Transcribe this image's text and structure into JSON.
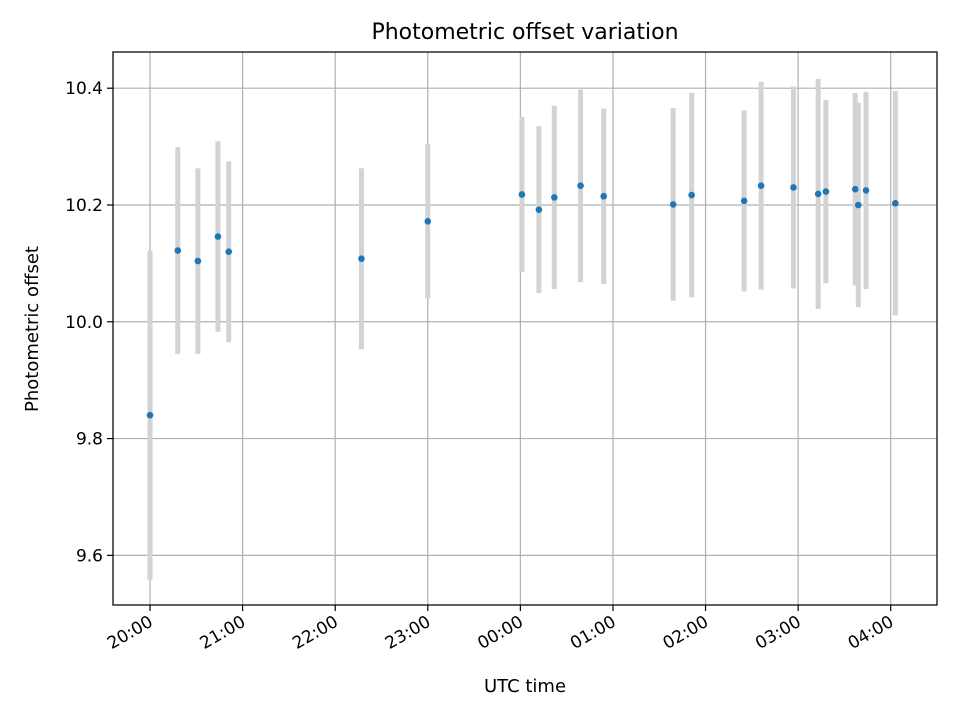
{
  "chart_data": {
    "type": "scatter",
    "title": "Photometric offset variation",
    "xlabel": "UTC time",
    "ylabel": "Photometric offset",
    "x_type": "time",
    "xlim": [
      "19:36",
      "04:30"
    ],
    "ylim": [
      9.515,
      10.462
    ],
    "x_ticks": [
      "20:00",
      "21:00",
      "22:00",
      "23:00",
      "00:00",
      "01:00",
      "02:00",
      "03:00",
      "04:00"
    ],
    "y_ticks": [
      9.6,
      9.8,
      10.0,
      10.2,
      10.4
    ],
    "y_tick_labels": [
      "9.6",
      "9.8",
      "10.0",
      "10.2",
      "10.4"
    ],
    "grid": true,
    "colors": {
      "marker": "#1f77b4",
      "errorbar": "#d3d3d3",
      "grid": "#b0b0b0",
      "axis": "#000000"
    },
    "series": [
      {
        "points": [
          {
            "x": "20:00",
            "y": 9.84,
            "yerr_low": 9.558,
            "yerr_high": 10.122
          },
          {
            "x": "20:18",
            "y": 10.122,
            "yerr_low": 9.945,
            "yerr_high": 10.299
          },
          {
            "x": "20:31",
            "y": 10.104,
            "yerr_low": 9.945,
            "yerr_high": 10.263
          },
          {
            "x": "20:44",
            "y": 10.146,
            "yerr_low": 9.983,
            "yerr_high": 10.309
          },
          {
            "x": "20:51",
            "y": 10.12,
            "yerr_low": 9.965,
            "yerr_high": 10.275
          },
          {
            "x": "22:17",
            "y": 10.108,
            "yerr_low": 9.953,
            "yerr_high": 10.263
          },
          {
            "x": "23:00",
            "y": 10.172,
            "yerr_low": 10.04,
            "yerr_high": 10.304
          },
          {
            "x": "00:01",
            "y": 10.218,
            "yerr_low": 10.085,
            "yerr_high": 10.351
          },
          {
            "x": "00:12",
            "y": 10.192,
            "yerr_low": 10.049,
            "yerr_high": 10.335
          },
          {
            "x": "00:22",
            "y": 10.213,
            "yerr_low": 10.056,
            "yerr_high": 10.37
          },
          {
            "x": "00:39",
            "y": 10.233,
            "yerr_low": 10.068,
            "yerr_high": 10.398
          },
          {
            "x": "00:54",
            "y": 10.215,
            "yerr_low": 10.065,
            "yerr_high": 10.365
          },
          {
            "x": "01:39",
            "y": 10.201,
            "yerr_low": 10.036,
            "yerr_high": 10.366
          },
          {
            "x": "01:51",
            "y": 10.217,
            "yerr_low": 10.042,
            "yerr_high": 10.392
          },
          {
            "x": "02:25",
            "y": 10.207,
            "yerr_low": 10.052,
            "yerr_high": 10.362
          },
          {
            "x": "02:36",
            "y": 10.233,
            "yerr_low": 10.055,
            "yerr_high": 10.411
          },
          {
            "x": "02:57",
            "y": 10.23,
            "yerr_low": 10.057,
            "yerr_high": 10.403
          },
          {
            "x": "03:13",
            "y": 10.219,
            "yerr_low": 10.022,
            "yerr_high": 10.416
          },
          {
            "x": "03:18",
            "y": 10.223,
            "yerr_low": 10.066,
            "yerr_high": 10.38
          },
          {
            "x": "03:37",
            "y": 10.227,
            "yerr_low": 10.062,
            "yerr_high": 10.392
          },
          {
            "x": "03:39",
            "y": 10.2,
            "yerr_low": 10.025,
            "yerr_high": 10.375
          },
          {
            "x": "03:44",
            "y": 10.225,
            "yerr_low": 10.056,
            "yerr_high": 10.394
          },
          {
            "x": "04:03",
            "y": 10.203,
            "yerr_low": 10.011,
            "yerr_high": 10.395
          }
        ]
      }
    ]
  }
}
